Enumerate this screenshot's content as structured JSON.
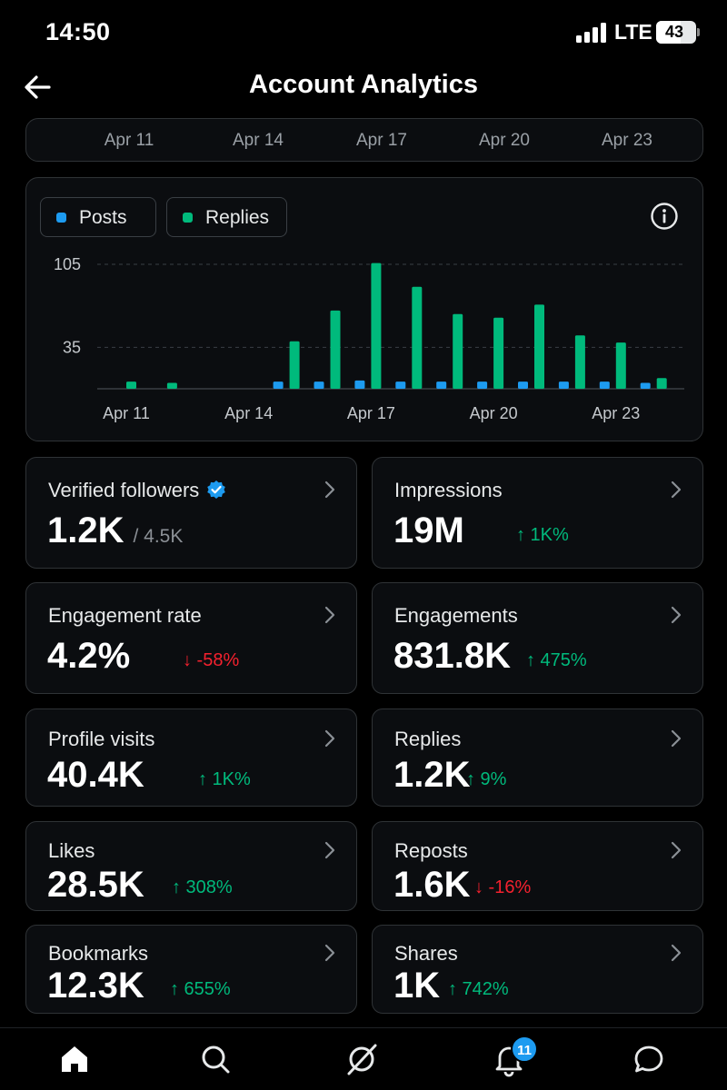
{
  "status_bar": {
    "time": "14:50",
    "network": "LTE",
    "battery": "43"
  },
  "header": {
    "title": "Account Analytics",
    "back_icon": "arrow-left-icon"
  },
  "date_range": [
    "Apr 11",
    "Apr 14",
    "Apr 17",
    "Apr 20",
    "Apr 23"
  ],
  "legend": [
    {
      "label": "Posts",
      "color": "#1d9bf0"
    },
    {
      "label": "Replies",
      "color": "#00ba7c"
    }
  ],
  "colors": {
    "posts": "#1d9bf0",
    "replies": "#00ba7c",
    "up": "#00ba7c",
    "down": "#f4212e",
    "verified": "#1d9bf0"
  },
  "chart_data": {
    "type": "bar",
    "categories": [
      "Apr 11",
      "Apr 12",
      "Apr 13",
      "Apr 14",
      "Apr 15",
      "Apr 16",
      "Apr 17",
      "Apr 18",
      "Apr 19",
      "Apr 20",
      "Apr 21",
      "Apr 22",
      "Apr 23",
      "Apr 24"
    ],
    "x_tick_labels": [
      "Apr 11",
      "Apr 14",
      "Apr 17",
      "Apr 20",
      "Apr 23"
    ],
    "y_ticks": [
      35,
      105
    ],
    "ylim": [
      0,
      105
    ],
    "grid": true,
    "legend_position": "top-left",
    "series": [
      {
        "name": "Posts",
        "values": [
          0,
          0,
          0,
          0,
          6,
          6,
          7,
          6,
          6,
          6,
          6,
          6,
          6,
          5
        ]
      },
      {
        "name": "Replies",
        "values": [
          6,
          5,
          0,
          0,
          40,
          66,
          106,
          86,
          63,
          60,
          71,
          45,
          39,
          9
        ]
      }
    ]
  },
  "metrics": [
    {
      "label": "Verified followers",
      "value": "1.2K",
      "sub": "/ 4.5K",
      "verified": true,
      "change": "",
      "direction": ""
    },
    {
      "label": "Impressions",
      "value": "19M",
      "sub": "",
      "verified": false,
      "change": "↑ 1K%",
      "direction": "up"
    },
    {
      "label": "Engagement rate",
      "value": "4.2%",
      "sub": "",
      "verified": false,
      "change": "↓ -58%",
      "direction": "down"
    },
    {
      "label": "Engagements",
      "value": "831.8K",
      "sub": "",
      "verified": false,
      "change": "↑ 475%",
      "direction": "up"
    },
    {
      "label": "Profile visits",
      "value": "40.4K",
      "sub": "",
      "verified": false,
      "change": "↑ 1K%",
      "direction": "up"
    },
    {
      "label": "Replies",
      "value": "1.2K",
      "sub": "",
      "verified": false,
      "change": "↑ 9%",
      "direction": "up"
    },
    {
      "label": "Likes",
      "value": "28.5K",
      "sub": "",
      "verified": false,
      "change": "↑ 308%",
      "direction": "up"
    },
    {
      "label": "Reposts",
      "value": "1.6K",
      "sub": "",
      "verified": false,
      "change": "↓ -16%",
      "direction": "down"
    },
    {
      "label": "Bookmarks",
      "value": "12.3K",
      "sub": "",
      "verified": false,
      "change": "↑ 655%",
      "direction": "up"
    },
    {
      "label": "Shares",
      "value": "1K",
      "sub": "",
      "verified": false,
      "change": "↑ 742%",
      "direction": "up"
    }
  ],
  "bottom_nav": {
    "items": [
      "home-icon",
      "search-icon",
      "grok-icon",
      "notifications-icon",
      "messages-icon"
    ],
    "notification_badge": "11"
  }
}
